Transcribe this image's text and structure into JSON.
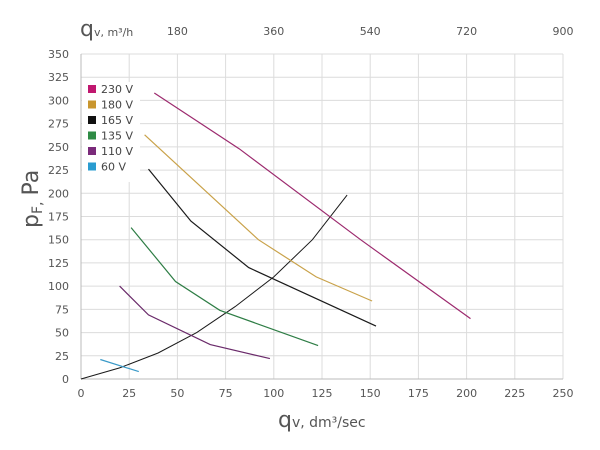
{
  "chart_data": {
    "type": "line",
    "title": "",
    "xlabel": {
      "main": "q",
      "sub": "v, dm³/sec"
    },
    "ylabel": {
      "main": "p",
      "sub": "F,",
      "unit": "Pa"
    },
    "x2label": {
      "main": "q",
      "sub": "v, m³/h"
    },
    "xlim": [
      0,
      250
    ],
    "ylim": [
      0,
      350
    ],
    "x_ticks": [
      "0",
      "25",
      "50",
      "75",
      "100",
      "125",
      "150",
      "175",
      "200",
      "225",
      "250"
    ],
    "y_ticks": [
      "0",
      "25",
      "50",
      "75",
      "100",
      "125",
      "150",
      "175",
      "200",
      "225",
      "250",
      "275",
      "300",
      "325",
      "350"
    ],
    "x2_ticks": [
      {
        "label": "180",
        "value": 50
      },
      {
        "label": "360",
        "value": 100
      },
      {
        "label": "540",
        "value": 150
      },
      {
        "label": "720",
        "value": 200
      },
      {
        "label": "900",
        "value": 250
      }
    ],
    "grid": true,
    "legend_position": "top-left",
    "series": [
      {
        "name": "230 V",
        "color": "#9c2a6e",
        "x": [
          38,
          82,
          145,
          202
        ],
        "y": [
          308,
          248,
          150,
          65
        ]
      },
      {
        "name": "180 V",
        "color": "#c9a24a",
        "x": [
          33,
          92,
          122,
          151
        ],
        "y": [
          263,
          150,
          110,
          84
        ]
      },
      {
        "name": "165 V",
        "color": "#1a1a1a",
        "x": [
          35,
          57,
          87,
          153
        ],
        "y": [
          226,
          170,
          120,
          57
        ]
      },
      {
        "name": "135 V",
        "color": "#2e7d45",
        "x": [
          26,
          49,
          72,
          123
        ],
        "y": [
          163,
          105,
          74,
          36
        ]
      },
      {
        "name": "110 V",
        "color": "#6a2a6a",
        "x": [
          20,
          35,
          67,
          98
        ],
        "y": [
          100,
          69,
          37,
          22
        ]
      },
      {
        "name": "60 V",
        "color": "#3a9ac8",
        "x": [
          10,
          30
        ],
        "y": [
          21,
          8
        ]
      }
    ],
    "system_curve": {
      "color": "#1a1a1a",
      "x": [
        0,
        20,
        40,
        60,
        80,
        100,
        120,
        138
      ],
      "y": [
        0,
        12,
        28,
        50,
        78,
        110,
        150,
        198
      ]
    }
  },
  "legend": [
    {
      "label": "230 V",
      "color": "#c0176f"
    },
    {
      "label": "180 V",
      "color": "#c9962e"
    },
    {
      "label": "165 V",
      "color": "#111111"
    },
    {
      "label": "135 V",
      "color": "#2e8b45"
    },
    {
      "label": "110 V",
      "color": "#7a2a7a"
    },
    {
      "label": "60 V",
      "color": "#2a9cd0"
    }
  ]
}
